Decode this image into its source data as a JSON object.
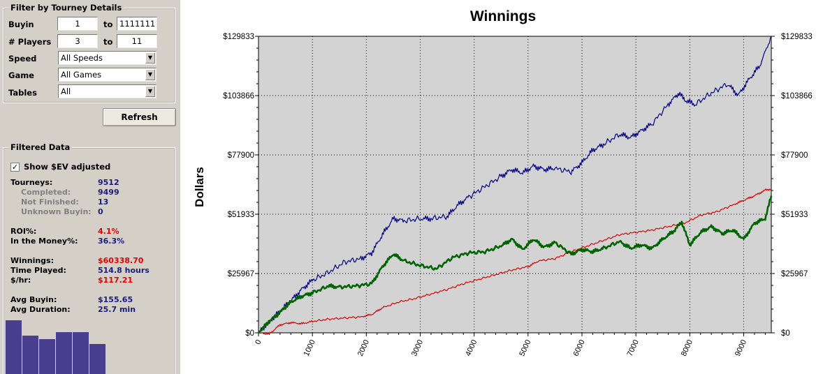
{
  "filter": {
    "title": "Filter by Tourney Details",
    "buyin": {
      "label": "Buyin",
      "from": "1",
      "to_label": "to",
      "to": "1111111"
    },
    "players": {
      "label": "# Players",
      "from": "3",
      "to_label": "to",
      "to": "11"
    },
    "speed": {
      "label": "Speed",
      "value": "All Speeds"
    },
    "game": {
      "label": "Game",
      "value": "All Games"
    },
    "tables": {
      "label": "Tables",
      "value": "All"
    },
    "refresh_label": "Refresh"
  },
  "filtered": {
    "title": "Filtered Data",
    "show_ev_label": "Show $EV adjusted",
    "show_ev_checked": true,
    "checkmark": "✓",
    "stats": {
      "tourneys": {
        "label": "Tourneys:",
        "value": "9512"
      },
      "completed": {
        "label": "Completed:",
        "value": "9499"
      },
      "not_finished": {
        "label": "Not Finished:",
        "value": "13"
      },
      "unknown_buyin": {
        "label": "Unknown Buyin:",
        "value": "0"
      },
      "roi": {
        "label": "ROI%:",
        "value": "4.1%"
      },
      "itm": {
        "label": "In the Money%:",
        "value": "36.3%"
      },
      "winnings": {
        "label": "Winnings:",
        "value": "$60338.70"
      },
      "time_played": {
        "label": "Time Played:",
        "value": "514.8 hours"
      },
      "per_hr": {
        "label": "$/hr:",
        "value": "$117.21"
      },
      "avg_buyin": {
        "label": "Avg Buyin:",
        "value": "$155.65"
      },
      "avg_duration": {
        "label": "Avg Duration:",
        "value": "25.7 min"
      }
    },
    "mini_histogram": [
      0.77,
      0.55,
      0.5,
      0.6,
      0.6,
      0.43
    ]
  },
  "chart_data": {
    "type": "line",
    "title": "Winnings",
    "ylabel": "Dollars",
    "xlabel": "",
    "xlim": [
      0,
      9512
    ],
    "ylim": [
      0,
      129833
    ],
    "xticks": [
      0,
      1000,
      2000,
      3000,
      4000,
      5000,
      6000,
      7000,
      8000,
      9000
    ],
    "yticks": [
      0,
      25967,
      51933,
      77900,
      103866,
      129833
    ],
    "ytick_labels": [
      "$0",
      "$25967",
      "$51933",
      "$77900",
      "$103866",
      "$129833"
    ],
    "grid": true,
    "background": "#d3d3d3",
    "series": [
      {
        "color": "#000080",
        "x": [
          0,
          200,
          400,
          600,
          800,
          1000,
          1300,
          1600,
          1900,
          2100,
          2300,
          2500,
          2700,
          3000,
          3200,
          3500,
          3700,
          3900,
          4200,
          4500,
          4700,
          4900,
          5100,
          5300,
          5500,
          5800,
          6000,
          6200,
          6400,
          6700,
          6900,
          7100,
          7300,
          7600,
          7800,
          7900,
          8100,
          8400,
          8700,
          8900,
          9100,
          9300,
          9512
        ],
        "y": [
          0,
          5000,
          9500,
          14000,
          19000,
          23000,
          26500,
          31000,
          32500,
          35000,
          43000,
          50000,
          49000,
          50000,
          50000,
          51000,
          56000,
          59500,
          64000,
          68500,
          71500,
          70000,
          73000,
          71500,
          72000,
          70500,
          74500,
          80000,
          82500,
          87000,
          85500,
          88500,
          91500,
          100000,
          105000,
          102000,
          100000,
          105000,
          109000,
          104000,
          111000,
          117000,
          129833
        ]
      },
      {
        "color": "#006400",
        "x": [
          0,
          200,
          400,
          600,
          800,
          1000,
          1300,
          1500,
          1800,
          2100,
          2300,
          2500,
          2700,
          3000,
          3300,
          3600,
          3900,
          4200,
          4500,
          4700,
          4900,
          5100,
          5300,
          5500,
          5800,
          6000,
          6200,
          6400,
          6700,
          6900,
          7100,
          7300,
          7500,
          7700,
          7850,
          8000,
          8200,
          8400,
          8600,
          8800,
          9000,
          9200,
          9400,
          9512
        ],
        "y": [
          0,
          5000,
          9000,
          13500,
          16000,
          17500,
          20500,
          20000,
          20500,
          21500,
          29000,
          34500,
          31500,
          29500,
          28000,
          33000,
          35000,
          35500,
          38000,
          41000,
          36500,
          41000,
          37500,
          39500,
          34500,
          36500,
          35500,
          37000,
          40000,
          37000,
          38500,
          37000,
          41000,
          44500,
          48500,
          38500,
          44000,
          46500,
          43500,
          45000,
          41000,
          48000,
          50000,
          60000
        ]
      },
      {
        "color": "#dd0000",
        "x": [
          0,
          200,
          400,
          600,
          800,
          1000,
          1300,
          1600,
          1900,
          2100,
          2300,
          2600,
          2900,
          3200,
          3500,
          3800,
          4100,
          4400,
          4700,
          5000,
          5200,
          5500,
          5800,
          6100,
          6400,
          6700,
          7000,
          7300,
          7600,
          7900,
          8200,
          8500,
          8800,
          9000,
          9200,
          9400,
          9512
        ],
        "y": [
          0,
          -500,
          3500,
          4500,
          4000,
          5000,
          6000,
          6500,
          7000,
          8000,
          11000,
          13500,
          15000,
          17000,
          19000,
          21500,
          23500,
          25500,
          27500,
          29000,
          31500,
          32500,
          35500,
          38000,
          40500,
          43000,
          44000,
          45000,
          46500,
          48000,
          51500,
          53000,
          56000,
          58000,
          60000,
          62500,
          63000
        ]
      }
    ]
  }
}
